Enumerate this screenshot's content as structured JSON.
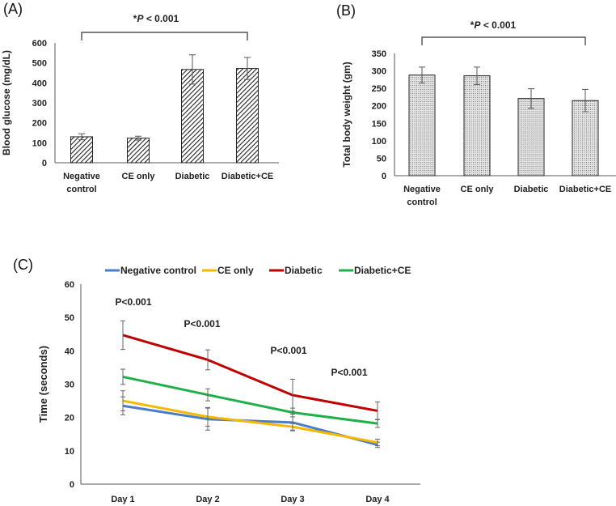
{
  "chart_data": [
    {
      "panel_label": "(A)",
      "type": "bar",
      "categories": [
        "Negative control",
        "CE only",
        "Diabetic",
        "Diabetic+CE"
      ],
      "category_lines": [
        [
          "Negative",
          "control"
        ],
        [
          "CE only"
        ],
        [
          "Diabetic"
        ],
        [
          "Diabetic+CE"
        ]
      ],
      "values": [
        130,
        123,
        467,
        472
      ],
      "errors": [
        15,
        10,
        73,
        55
      ],
      "ylabel": "Blood glucose (mg/dL)",
      "ylim": [
        0,
        600
      ],
      "yticks": [
        0,
        100,
        200,
        300,
        400,
        500,
        600
      ],
      "fill": "diagonal-hatch",
      "annotation": {
        "prefix": "*",
        "italic": "P",
        "rest": " < 0.001"
      },
      "grid": false
    },
    {
      "panel_label": "(B)",
      "type": "bar",
      "categories": [
        "Negative control",
        "CE only",
        "Diabetic",
        "Diabetic+CE"
      ],
      "category_lines": [
        [
          "Negative",
          "control"
        ],
        [
          "CE only"
        ],
        [
          "Diabetic"
        ],
        [
          "Diabetic+CE"
        ]
      ],
      "values": [
        288,
        286,
        221,
        215
      ],
      "errors": [
        23,
        25,
        28,
        32
      ],
      "ylabel": "Total body weight (gm)",
      "ylim": [
        0,
        350
      ],
      "yticks": [
        0,
        50,
        100,
        150,
        200,
        250,
        300,
        350
      ],
      "fill": "dotted",
      "annotation": {
        "prefix": "*",
        "italic": "P",
        "rest": " < 0.001"
      },
      "grid": false
    },
    {
      "panel_label": "(C)",
      "type": "line",
      "categories": [
        "Day 1",
        "Day 2",
        "Day 3",
        "Day 4"
      ],
      "ylabel": "Time (seconds)",
      "ylim": [
        0,
        60
      ],
      "yticks": [
        0,
        10,
        20,
        30,
        40,
        50,
        60
      ],
      "legend_position": "top",
      "grid": false,
      "series": [
        {
          "name": "Negative control",
          "color": "#4a7cc7",
          "values": [
            23.5,
            19.5,
            18.5,
            11.8
          ],
          "errors": [
            2.7,
            3.3,
            2.5,
            0.8
          ]
        },
        {
          "name": "CE only",
          "color": "#f5b800",
          "values": [
            25.0,
            20.2,
            17.2,
            12.5
          ],
          "errors": [
            3.0,
            2.8,
            1.0,
            1.0
          ]
        },
        {
          "name": "Diabetic",
          "color": "#c00000",
          "values": [
            44.7,
            37.3,
            26.7,
            22.0
          ],
          "errors": [
            4.3,
            3.0,
            4.8,
            2.7
          ]
        },
        {
          "name": "Diabetic+CE",
          "color": "#1fb04a",
          "values": [
            32.2,
            26.8,
            21.5,
            18.2
          ],
          "errors": [
            2.3,
            1.8,
            1.3,
            1.2
          ]
        }
      ],
      "annotations": [
        {
          "text": "P<0.001",
          "day": "Day 1"
        },
        {
          "text": "P<0.001",
          "day": "Day 2"
        },
        {
          "text": "P<0.001",
          "day": "Day 3"
        },
        {
          "text": "P<0.001",
          "day": "Day 4"
        }
      ]
    }
  ]
}
